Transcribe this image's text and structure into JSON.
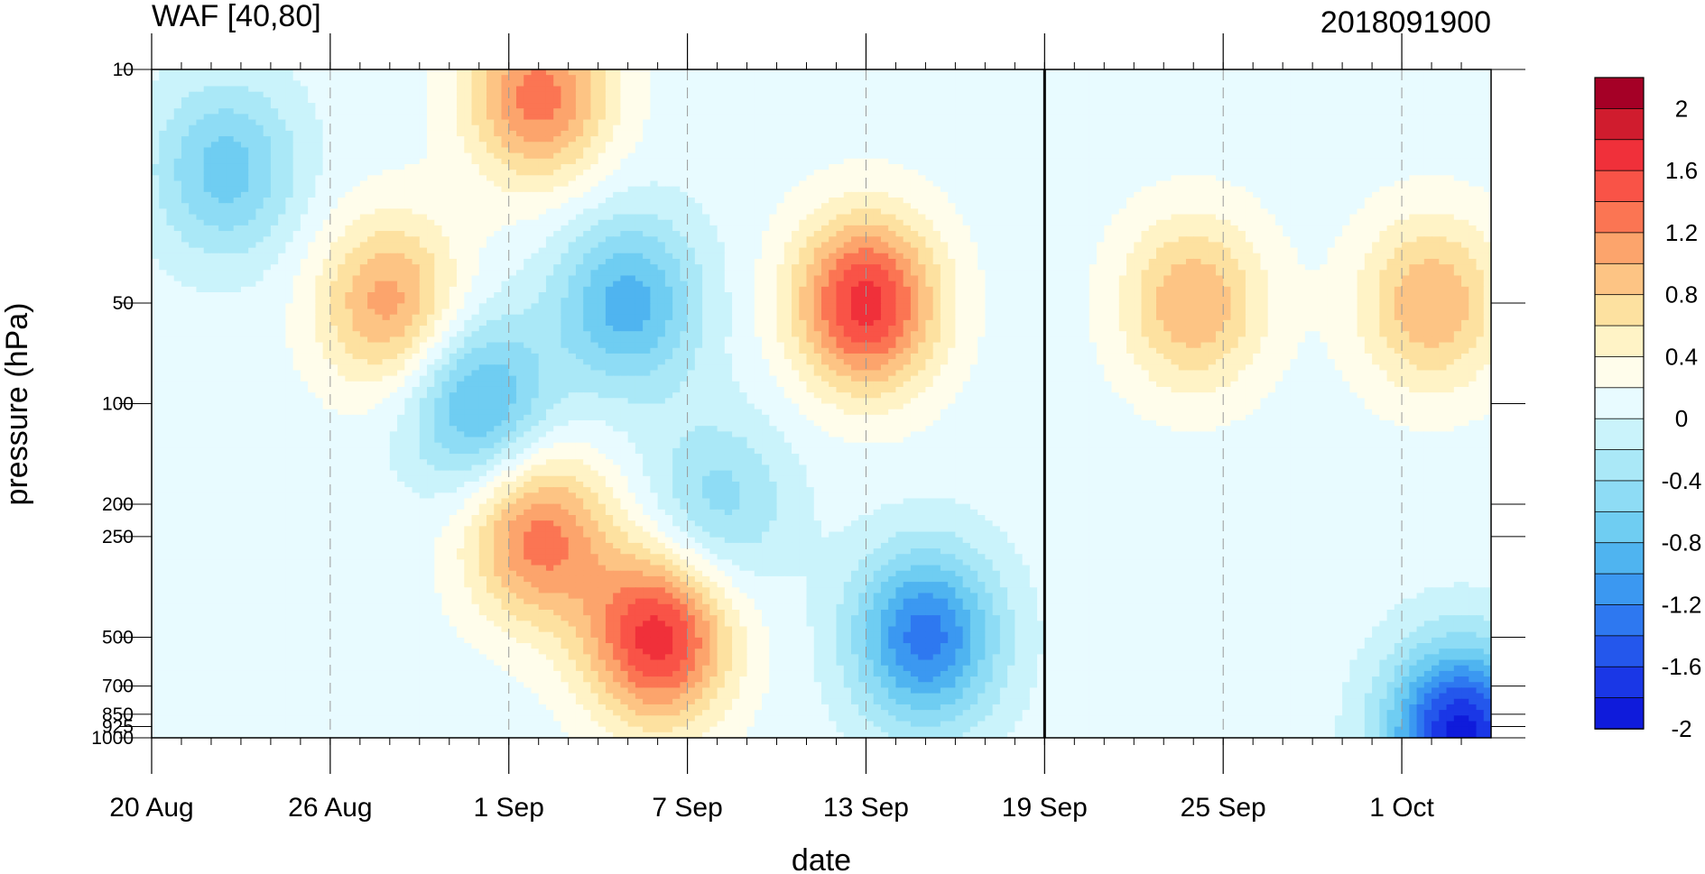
{
  "chart_data": {
    "type": "heatmap",
    "title_left": "WAF [40,80]",
    "title_right": "2018091900",
    "xlabel": "date",
    "ylabel": "pressure (hPa)",
    "x_ticks": [
      {
        "label": "20 Aug",
        "day": 0
      },
      {
        "label": "26 Aug",
        "day": 6
      },
      {
        "label": "1 Sep",
        "day": 12
      },
      {
        "label": "7 Sep",
        "day": 18
      },
      {
        "label": "13 Sep",
        "day": 24
      },
      {
        "label": "19 Sep",
        "day": 30
      },
      {
        "label": "25 Sep",
        "day": 36
      },
      {
        "label": "1 Oct",
        "day": 42
      }
    ],
    "y_ticks": [
      10,
      50,
      100,
      200,
      250,
      500,
      700,
      850,
      925,
      1000
    ],
    "y_scale": "log",
    "y_range_hPa": [
      10,
      1000
    ],
    "x_range_days": [
      0,
      45
    ],
    "analysis_day": 30,
    "colorbar": {
      "labels": [
        "2",
        "1.6",
        "1.2",
        "0.8",
        "0.4",
        "0",
        "-0.4",
        "-0.8",
        "-1.2",
        "-1.6",
        "-2"
      ],
      "colors": [
        "#a50026",
        "#d01c2e",
        "#f0303a",
        "#f95347",
        "#fb7553",
        "#fca46c",
        "#fdc484",
        "#fde1a0",
        "#fff3c6",
        "#fffdeb",
        "#e8fbff",
        "#caf3fb",
        "#aae8f7",
        "#8edcf5",
        "#6fcdf2",
        "#4fb4f0",
        "#3b98f1",
        "#2e78f0",
        "#2457ec",
        "#1a37e6",
        "#0f1bdb"
      ]
    },
    "features": [
      {
        "day": 2.5,
        "p": 20,
        "value": -0.8
      },
      {
        "day": 8,
        "p": 50,
        "value": 1.0
      },
      {
        "day": 13,
        "p": 12,
        "value": 1.2
      },
      {
        "day": 11,
        "p": 100,
        "value": -1.0
      },
      {
        "day": 16,
        "p": 50,
        "value": -1.0
      },
      {
        "day": 13,
        "p": 250,
        "value": 1.2
      },
      {
        "day": 17,
        "p": 500,
        "value": 1.6
      },
      {
        "day": 24,
        "p": 50,
        "value": 1.6
      },
      {
        "day": 19,
        "p": 200,
        "value": -0.6
      },
      {
        "day": 26,
        "p": 500,
        "value": -1.4
      },
      {
        "day": 35,
        "p": 50,
        "value": 0.9
      },
      {
        "day": 43,
        "p": 50,
        "value": 0.9
      },
      {
        "day": 44,
        "p": 980,
        "value": -2.0
      }
    ]
  }
}
